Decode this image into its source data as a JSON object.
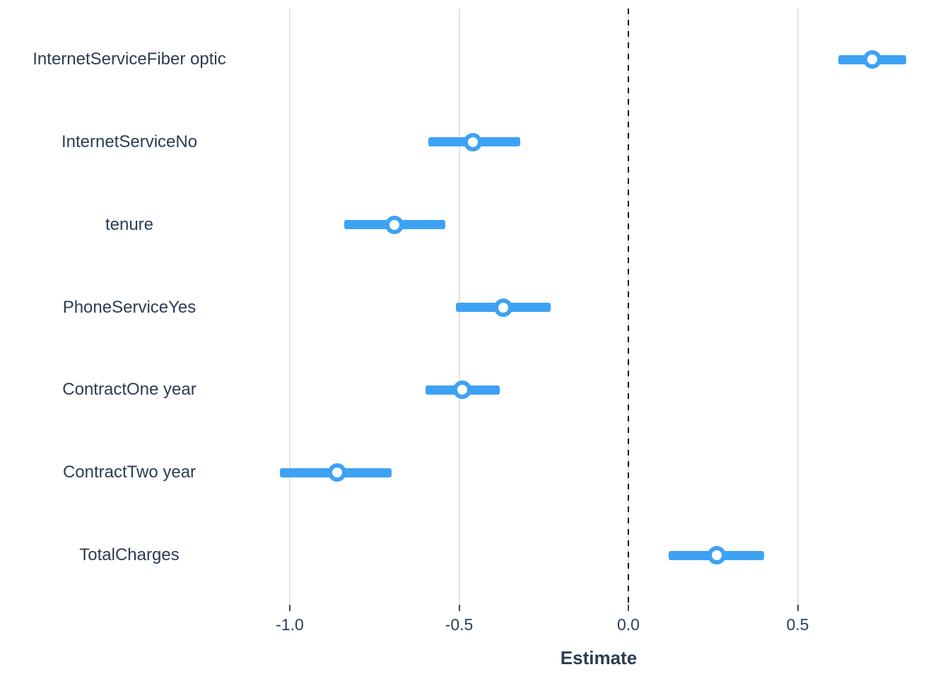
{
  "chart_data": {
    "type": "scatter",
    "subtype": "coefficient-forest-plot",
    "title": "",
    "xlabel": "Estimate",
    "ylabel": "",
    "categories": [
      "InternetServiceFiber optic",
      "InternetServiceNo",
      "tenure",
      "PhoneServiceYes",
      "ContractOne year",
      "ContractTwo year",
      "TotalCharges"
    ],
    "series": [
      {
        "name": "estimate",
        "values": [
          0.72,
          -0.46,
          -0.69,
          -0.37,
          -0.49,
          -0.86,
          0.26
        ]
      },
      {
        "name": "ci_low",
        "values": [
          0.62,
          -0.59,
          -0.84,
          -0.51,
          -0.6,
          -1.03,
          0.12
        ]
      },
      {
        "name": "ci_high",
        "values": [
          0.82,
          -0.32,
          -0.54,
          -0.23,
          -0.38,
          -0.7,
          0.4
        ]
      }
    ],
    "x_ticks": [
      -1.0,
      -0.5,
      0.0,
      0.5
    ],
    "x_tick_labels": [
      "-1.0",
      "-0.5",
      "0.0",
      "0.5"
    ],
    "xlim": [
      -1.1,
      0.95
    ],
    "zero_line_x": 0.0,
    "grid": "vertical-major-only",
    "legend": "none",
    "colors": {
      "bar": "#3da2f4",
      "point_fill": "#ffffff",
      "point_ring": "#3da2f4",
      "grid": "#e4e4e4",
      "zero_line": "#141414",
      "text": "#2c3d50"
    }
  }
}
